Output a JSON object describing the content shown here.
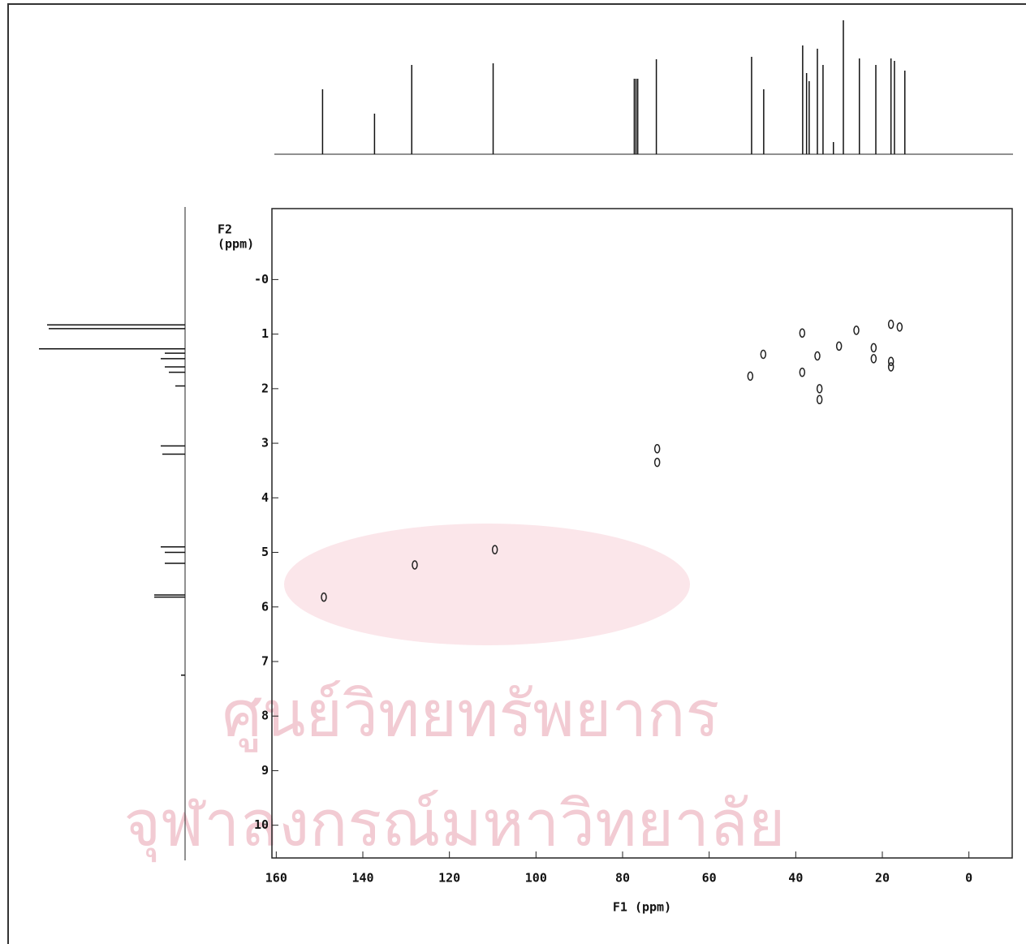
{
  "chart_data": {
    "type": "scatter",
    "x_label": "F1 (ppm)",
    "y_label": [
      "F2",
      "(ppm)"
    ],
    "xlim": [
      161,
      -10
    ],
    "xticks": [
      160,
      140,
      120,
      100,
      80,
      60,
      40,
      20,
      0
    ],
    "ylim": [
      -1.3,
      10.6
    ],
    "yticks": [
      {
        "value": 0,
        "label": "-0"
      },
      1,
      2,
      3,
      4,
      5,
      6,
      7,
      8,
      9,
      10
    ],
    "color": "#222222",
    "x": [
      149,
      128,
      109.5,
      72,
      72,
      50.5,
      47.5,
      38.5,
      38.5,
      35,
      34.5,
      34.5,
      30,
      26,
      22,
      22,
      18,
      16,
      18,
      18
    ],
    "values": [
      5.82,
      5.23,
      4.95,
      3.1,
      3.35,
      1.77,
      1.37,
      0.98,
      1.7,
      1.4,
      2.0,
      2.2,
      1.22,
      0.93,
      1.25,
      1.45,
      0.82,
      0.87,
      1.5,
      1.6
    ],
    "top_spectrum": {
      "x": [
        149.3,
        137.3,
        128.7,
        109.9,
        77.3,
        76.9,
        76.5,
        72.2,
        50.2,
        47.4,
        38.4,
        37.5,
        36.9,
        35.0,
        33.7,
        31.3,
        29.0,
        25.3,
        21.5,
        18.0,
        17.2,
        14.8
      ],
      "values": [
        80,
        50,
        110,
        112,
        93,
        93,
        93,
        117,
        120,
        80,
        134,
        100,
        90,
        130,
        110,
        15,
        165,
        118,
        110,
        118,
        115,
        103
      ]
    },
    "side_spectrum": {
      "y": [
        0.83,
        0.9,
        1.27,
        1.35,
        1.45,
        1.6,
        1.7,
        1.95,
        3.05,
        3.2,
        4.9,
        5.0,
        5.2,
        5.78,
        5.82,
        7.25
      ],
      "values": [
        170,
        168,
        180,
        25,
        30,
        25,
        20,
        12,
        30,
        28,
        30,
        25,
        25,
        38,
        38,
        5
      ]
    },
    "watermark": [
      "ศูนย์วิทยทรัพยากร",
      "จุฬาลงกรณ์มหาวิทยาลัย"
    ]
  }
}
